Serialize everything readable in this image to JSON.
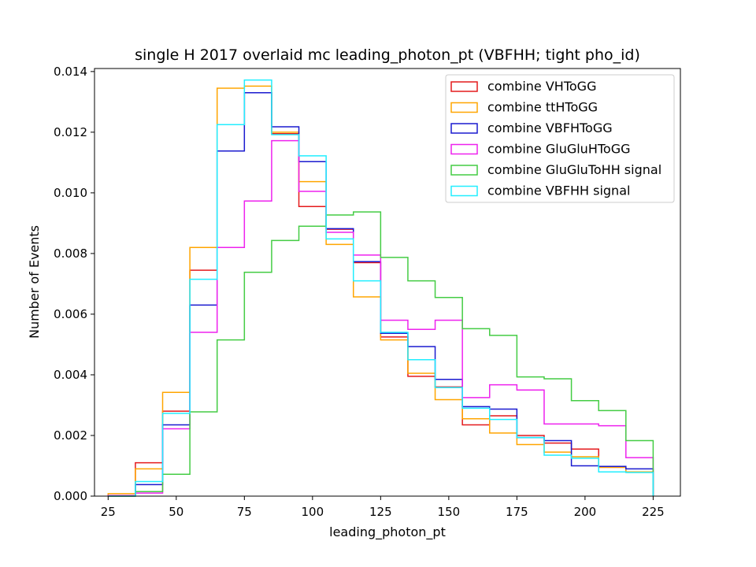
{
  "chart_data": {
    "type": "step-histogram",
    "title": "single H 2017 overlaid mc leading_photon_pt (VBFHH; tight pho_id)",
    "xlabel": "leading_photon_pt",
    "ylabel": "Number of Events",
    "xlim": [
      20,
      235
    ],
    "ylim": [
      0,
      0.0141
    ],
    "x_ticks": [
      "25",
      "50",
      "75",
      "100",
      "125",
      "150",
      "175",
      "200",
      "225"
    ],
    "y_ticks": [
      "0.000",
      "0.002",
      "0.004",
      "0.006",
      "0.008",
      "0.010",
      "0.012",
      "0.014"
    ],
    "bin_edges": [
      25,
      35,
      45,
      55,
      65,
      75,
      85,
      95,
      105,
      115,
      125,
      135,
      145,
      155,
      165,
      175,
      185,
      195,
      205,
      215,
      225
    ],
    "legend_position": "top-right",
    "grid": false,
    "series": [
      {
        "name": "combine VHToGG",
        "color": "#e41a1c",
        "values": [
          0.0,
          0.0011,
          0.0028,
          0.00745,
          0.01225,
          0.0133,
          0.01195,
          0.00955,
          0.0088,
          0.0077,
          0.00525,
          0.00395,
          0.0036,
          0.00235,
          0.00265,
          0.002,
          0.00175,
          0.00155,
          0.00095,
          0.0008
        ]
      },
      {
        "name": "combine ttHToGG",
        "color": "#ffa500",
        "values": [
          8e-05,
          0.0009,
          0.00342,
          0.0082,
          0.01345,
          0.01352,
          0.012,
          0.01037,
          0.0083,
          0.00657,
          0.00515,
          0.00405,
          0.00318,
          0.00255,
          0.00208,
          0.0017,
          0.00145,
          0.0013,
          0.00095,
          0.0008
        ]
      },
      {
        "name": "combine VBFHToGG",
        "color": "#1a1acf",
        "values": [
          2e-05,
          0.00038,
          0.00235,
          0.0063,
          0.01138,
          0.0133,
          0.01218,
          0.01103,
          0.00882,
          0.00773,
          0.00537,
          0.00493,
          0.00385,
          0.00295,
          0.00287,
          0.00193,
          0.00183,
          0.001,
          0.00098,
          0.0009
        ]
      },
      {
        "name": "combine GluGluHToGG",
        "color": "#ee22ee",
        "values": [
          2e-05,
          0.0001,
          0.00222,
          0.0054,
          0.0082,
          0.00973,
          0.01172,
          0.01005,
          0.0087,
          0.00795,
          0.0058,
          0.0055,
          0.0058,
          0.00325,
          0.00367,
          0.0035,
          0.00238,
          0.00238,
          0.00232,
          0.00127
        ]
      },
      {
        "name": "combine GluGluToHH signal",
        "color": "#44cc44",
        "values": [
          0.0,
          0.00015,
          0.00072,
          0.00278,
          0.00515,
          0.00738,
          0.00843,
          0.0089,
          0.00927,
          0.00937,
          0.00787,
          0.0071,
          0.00655,
          0.00552,
          0.0053,
          0.00393,
          0.00387,
          0.00315,
          0.00282,
          0.00183
        ]
      },
      {
        "name": "combine VBFHH signal",
        "color": "#22eeff",
        "values": [
          0.0,
          0.00048,
          0.00273,
          0.00715,
          0.01225,
          0.01372,
          0.01192,
          0.01122,
          0.00848,
          0.0071,
          0.0054,
          0.0045,
          0.00358,
          0.0029,
          0.00253,
          0.00193,
          0.00135,
          0.00125,
          0.0008,
          0.00078
        ]
      }
    ]
  }
}
